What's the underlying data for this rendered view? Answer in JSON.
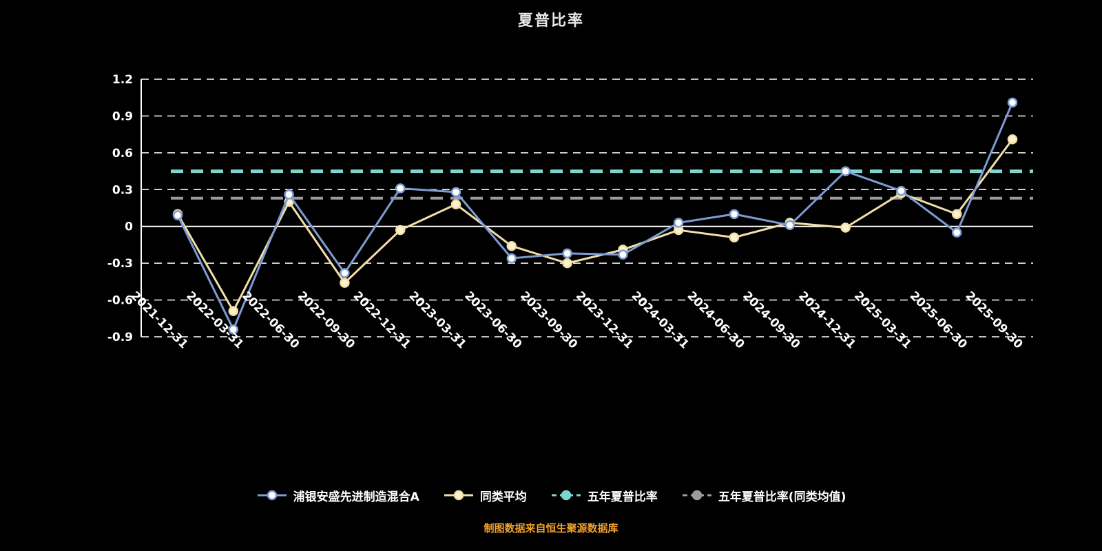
{
  "title": "夏普比率",
  "footer": "制图数据来自恒生聚源数据库",
  "colors": {
    "background": "#000000",
    "grid": "#ffffff",
    "text": "#ffffff",
    "title": "#e8e8e8",
    "fund": "#7E9BD4",
    "peer": "#F2DFA7",
    "five_year": "#7FD4D0",
    "five_year_peer": "#9B9B9B",
    "footer_text": "#F0A12E"
  },
  "legend": [
    {
      "key": "fund",
      "label": "浦银安盛先进制造混合A"
    },
    {
      "key": "peer",
      "label": "同类平均"
    },
    {
      "key": "five_year",
      "label": "五年夏普比率"
    },
    {
      "key": "five_year_peer",
      "label": "五年夏普比率(同类均值)"
    }
  ],
  "chart_data": {
    "type": "line",
    "title": "夏普比率",
    "categories": [
      "2021-12-31",
      "2022-03-31",
      "2022-06-30",
      "2022-09-30",
      "2022-12-31",
      "2023-03-31",
      "2023-06-30",
      "2023-09-30",
      "2023-12-31",
      "2024-03-31",
      "2024-06-30",
      "2024-09-30",
      "2024-12-31",
      "2025-03-31",
      "2025-06-30",
      "2025-09-30"
    ],
    "series": [
      {
        "key": "fund",
        "name": "浦银安盛先进制造混合A",
        "values": [
          0.09,
          -0.84,
          0.26,
          -0.38,
          0.31,
          0.28,
          -0.26,
          -0.22,
          -0.23,
          0.03,
          0.1,
          0.01,
          0.45,
          0.29,
          -0.05,
          1.01
        ]
      },
      {
        "key": "peer",
        "name": "同类平均",
        "values": [
          0.1,
          -0.69,
          0.2,
          -0.46,
          -0.03,
          0.18,
          -0.16,
          -0.3,
          -0.19,
          -0.03,
          -0.09,
          0.03,
          -0.01,
          0.27,
          0.1,
          0.71
        ]
      },
      {
        "key": "five_year",
        "name": "五年夏普比率",
        "constant": 0.45
      },
      {
        "key": "five_year_peer",
        "name": "五年夏普比率(同类均值)",
        "constant": 0.23
      }
    ],
    "ylim": [
      -0.9,
      1.2
    ],
    "yticks": [
      1.2,
      0.9,
      0.6,
      0.3,
      0,
      -0.3,
      -0.6,
      -0.9
    ],
    "grid": "dashed-horizontal",
    "legend_position": "bottom",
    "xlabel": "",
    "ylabel": ""
  }
}
